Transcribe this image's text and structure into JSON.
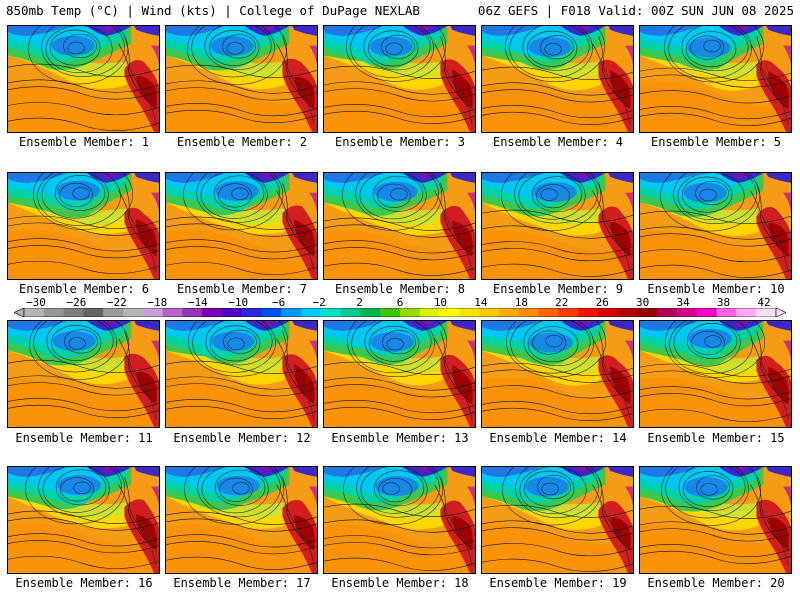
{
  "header": {
    "left": "850mb Temp (°C) | Wind (kts) | College of DuPage NEXLAB",
    "right": "06Z GEFS | F018 Valid: 00Z SUN JUN 08 2025"
  },
  "members": [
    "Ensemble Member: 1",
    "Ensemble Member: 2",
    "Ensemble Member: 3",
    "Ensemble Member: 4",
    "Ensemble Member: 5",
    "Ensemble Member: 6",
    "Ensemble Member: 7",
    "Ensemble Member: 8",
    "Ensemble Member: 9",
    "Ensemble Member: 10",
    "Ensemble Member: 11",
    "Ensemble Member: 12",
    "Ensemble Member: 13",
    "Ensemble Member: 14",
    "Ensemble Member: 15",
    "Ensemble Member: 16",
    "Ensemble Member: 17",
    "Ensemble Member: 18",
    "Ensemble Member: 19",
    "Ensemble Member: 20"
  ],
  "colorbar": {
    "labels": [
      "−30",
      "−26",
      "−22",
      "−18",
      "−14",
      "−10",
      "−6",
      "−2",
      "2",
      "6",
      "10",
      "14",
      "18",
      "22",
      "26",
      "30",
      "34",
      "38",
      "42"
    ],
    "colors": [
      "#b4b4b4",
      "#969696",
      "#7d7d7d",
      "#646464",
      "#9b9b9b",
      "#b4b4b4",
      "#c8a0dc",
      "#b464c8",
      "#9632b4",
      "#7d00b4",
      "#5000c8",
      "#2828dc",
      "#0050f0",
      "#0096ff",
      "#00c8ff",
      "#00e1c8",
      "#00c896",
      "#00b450",
      "#3cc800",
      "#96dc00",
      "#dcf000",
      "#ffff00",
      "#ffe100",
      "#ffc800",
      "#ffaa00",
      "#ff8c00",
      "#ff6400",
      "#ff3c00",
      "#f01400",
      "#d20000",
      "#b40000",
      "#960000",
      "#b4005a",
      "#d2008c",
      "#f000c8",
      "#ff64e6",
      "#ffaaf0",
      "#ffdcfa"
    ]
  },
  "map_colors": {
    "warm_base": "#f59c14",
    "orange": "#ff8c00",
    "yellow": "#ffd700",
    "yellow_green": "#c8e632",
    "green": "#3cc850",
    "teal": "#00d2aa",
    "cyan": "#00c8f0",
    "blue": "#1e78e6",
    "deep_blue": "#3c28c8",
    "purple": "#7814b4",
    "red": "#d21e1e",
    "dark_red": "#a00000",
    "magenta": "#c800a0"
  }
}
